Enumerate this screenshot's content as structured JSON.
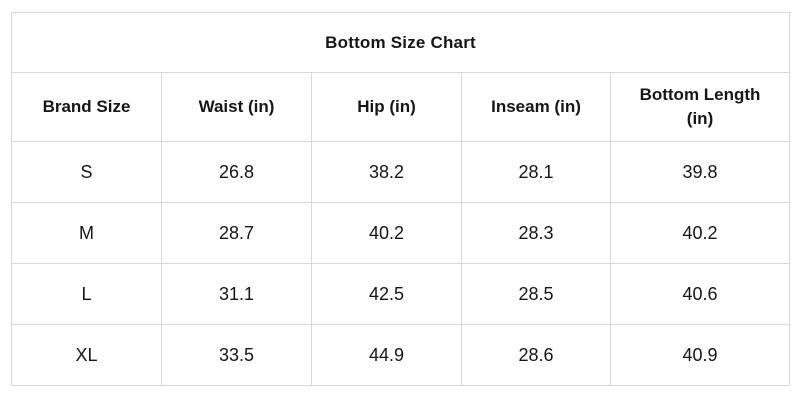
{
  "page": {
    "background": "#ffffff"
  },
  "colors": {
    "border": "#d9d9d9",
    "text": "#161616",
    "cell_background": "#ffffff"
  },
  "chart_data": {
    "type": "table",
    "title": "Bottom Size Chart",
    "columns": [
      "Brand Size",
      "Waist (in)",
      "Hip (in)",
      "Inseam (in)",
      "Bottom Length (in)"
    ],
    "rows": [
      [
        "S",
        "26.8",
        "38.2",
        "28.1",
        "39.8"
      ],
      [
        "M",
        "28.7",
        "40.2",
        "28.3",
        "40.2"
      ],
      [
        "L",
        "31.1",
        "42.5",
        "28.5",
        "40.6"
      ],
      [
        "XL",
        "33.5",
        "44.9",
        "28.6",
        "40.9"
      ]
    ]
  }
}
